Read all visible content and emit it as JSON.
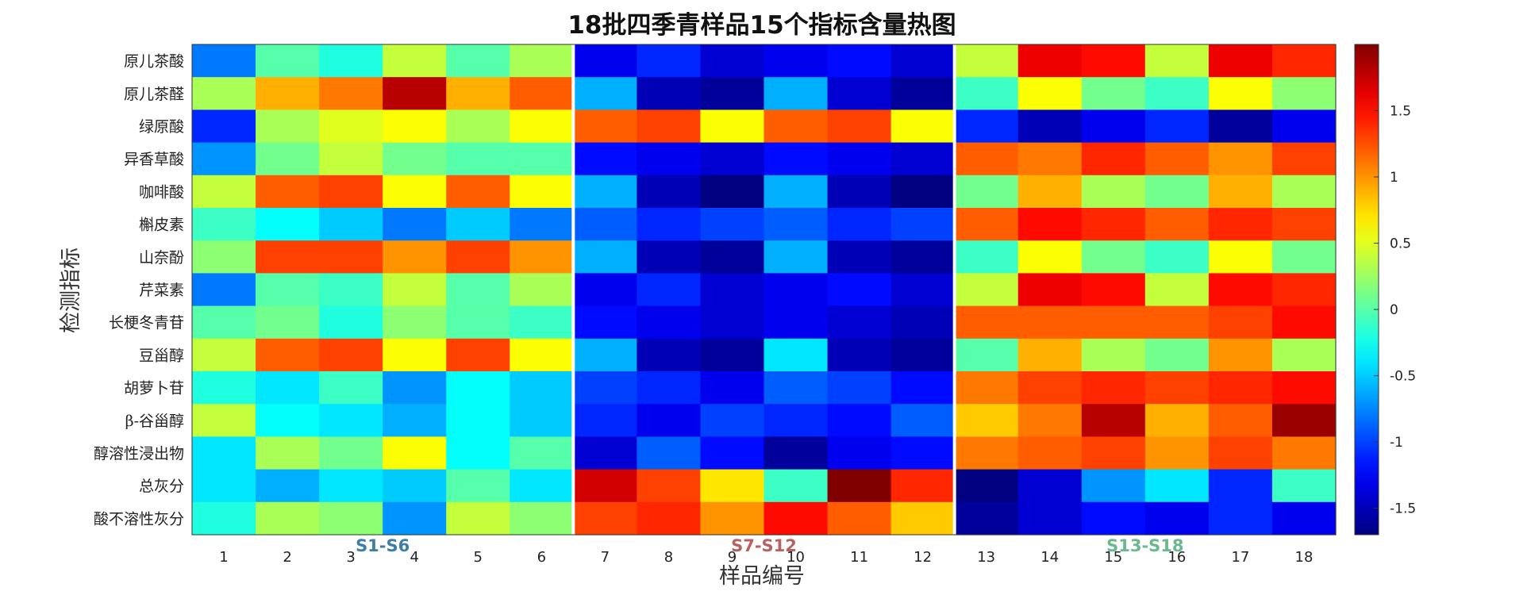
{
  "chart_data": {
    "type": "heatmap",
    "title": "18批四季青样品15个指标含量热图",
    "xlabel": "样品编号",
    "ylabel": "检测指标",
    "x": [
      "1",
      "2",
      "3",
      "4",
      "5",
      "6",
      "7",
      "8",
      "9",
      "10",
      "11",
      "12",
      "13",
      "14",
      "15",
      "16",
      "17",
      "18"
    ],
    "y": [
      "原儿茶酸",
      "原儿茶醛",
      "绿原酸",
      "异香草酸",
      "咖啡酸",
      "槲皮素",
      "山奈酚",
      "芹菜素",
      "长梗冬青苷",
      "豆甾醇",
      "胡萝卜苷",
      "β-谷甾醇",
      "醇溶性浸出物",
      "总灰分",
      "酸不溶性灰分"
    ],
    "values": [
      [
        -0.8,
        0.0,
        -0.2,
        0.4,
        0.0,
        0.3,
        -1.3,
        -1.1,
        -1.4,
        -1.3,
        -1.2,
        -1.4,
        0.4,
        1.6,
        1.5,
        0.4,
        1.6,
        1.4
      ],
      [
        0.3,
        0.9,
        1.1,
        1.8,
        0.9,
        1.2,
        -0.6,
        -1.5,
        -1.6,
        -0.6,
        -1.4,
        -1.6,
        -0.1,
        0.6,
        0.1,
        -0.1,
        0.6,
        0.2
      ],
      [
        -1.1,
        0.3,
        0.5,
        0.6,
        0.3,
        0.6,
        1.2,
        1.3,
        0.6,
        1.2,
        1.3,
        0.6,
        -1.1,
        -1.5,
        -1.3,
        -1.1,
        -1.6,
        -1.3
      ],
      [
        -0.7,
        0.1,
        0.4,
        0.1,
        0.0,
        0.0,
        -1.2,
        -1.3,
        -1.4,
        -1.2,
        -1.3,
        -1.4,
        1.2,
        1.1,
        1.4,
        1.2,
        1.0,
        1.3
      ],
      [
        0.4,
        1.2,
        1.3,
        0.6,
        1.2,
        0.6,
        -0.6,
        -1.5,
        -1.7,
        -0.6,
        -1.5,
        -1.7,
        0.1,
        0.9,
        0.3,
        0.1,
        0.9,
        0.3
      ],
      [
        -0.1,
        -0.3,
        -0.5,
        -0.8,
        -0.5,
        -0.8,
        -0.9,
        -1.1,
        -1.0,
        -0.9,
        -1.1,
        -1.0,
        1.2,
        1.5,
        1.4,
        1.2,
        1.4,
        1.3
      ],
      [
        0.2,
        1.3,
        1.3,
        1.0,
        1.3,
        1.0,
        -0.6,
        -1.5,
        -1.6,
        -0.6,
        -1.5,
        -1.6,
        -0.1,
        0.6,
        0.1,
        -0.1,
        0.6,
        0.1
      ],
      [
        -0.8,
        0.0,
        -0.1,
        0.4,
        0.0,
        0.3,
        -1.3,
        -1.1,
        -1.4,
        -1.3,
        -1.2,
        -1.4,
        0.4,
        1.6,
        1.5,
        0.4,
        1.5,
        1.4
      ],
      [
        0.0,
        0.1,
        -0.2,
        0.2,
        0.0,
        -0.1,
        -1.2,
        -1.3,
        -1.4,
        -1.3,
        -1.4,
        -1.5,
        1.2,
        1.2,
        1.2,
        1.2,
        1.3,
        1.5
      ],
      [
        0.4,
        1.2,
        1.3,
        0.6,
        1.3,
        0.6,
        -0.6,
        -1.5,
        -1.6,
        -0.4,
        -1.5,
        -1.6,
        0.0,
        0.9,
        0.3,
        0.1,
        1.0,
        0.3
      ],
      [
        -0.2,
        -0.4,
        -0.1,
        -0.7,
        -0.3,
        -0.5,
        -1.0,
        -1.1,
        -1.3,
        -0.9,
        -1.0,
        -1.2,
        1.1,
        1.3,
        1.4,
        1.3,
        1.4,
        1.5
      ],
      [
        0.4,
        -0.3,
        -0.4,
        -0.6,
        -0.3,
        -0.5,
        -1.1,
        -1.3,
        -1.0,
        -1.1,
        -1.2,
        -0.9,
        0.8,
        1.1,
        1.8,
        0.9,
        1.2,
        1.9
      ],
      [
        -0.4,
        0.3,
        0.1,
        0.6,
        -0.3,
        0.0,
        -1.4,
        -0.9,
        -1.2,
        -1.6,
        -1.3,
        -1.2,
        1.1,
        1.2,
        1.3,
        1.0,
        1.3,
        1.1
      ],
      [
        -0.4,
        -0.6,
        -0.4,
        -0.5,
        0.0,
        -0.4,
        1.7,
        1.3,
        0.7,
        -0.1,
        2.0,
        1.4,
        -1.7,
        -1.4,
        -0.7,
        -0.4,
        -1.1,
        -0.1
      ],
      [
        -0.2,
        0.3,
        0.2,
        -0.7,
        0.4,
        0.2,
        1.3,
        1.4,
        1.0,
        1.5,
        1.2,
        0.8,
        -1.6,
        -1.4,
        -1.2,
        -1.3,
        -1.1,
        -1.3
      ]
    ],
    "colormap": "jet",
    "clim": [
      -1.7,
      2.0
    ],
    "colorbar_ticks": [
      -1.5,
      -1,
      -0.5,
      0,
      0.5,
      1,
      1.5
    ],
    "group_separators_after_columns": [
      6,
      12
    ],
    "separator_color": "#ffffff",
    "groups": [
      {
        "label": "S1-S6",
        "columns": [
          1,
          6
        ],
        "color": "#3b7fa6"
      },
      {
        "label": "S7-S12",
        "columns": [
          7,
          12
        ],
        "color": "#b96060"
      },
      {
        "label": "S13-S18",
        "columns": [
          13,
          18
        ],
        "color": "#6ab88e"
      }
    ]
  }
}
